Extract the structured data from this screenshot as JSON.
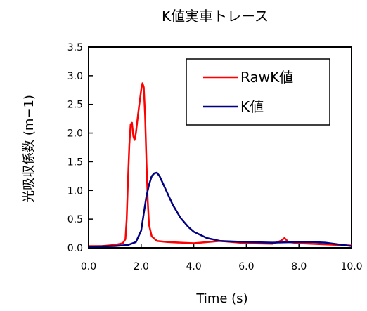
{
  "chart_data": {
    "type": "line",
    "title": "K値実車トレース",
    "xlabel": "Time (s)",
    "ylabel": "光吸収係数 (m−1)",
    "xlim": [
      0,
      10
    ],
    "ylim": [
      0,
      3.5
    ],
    "x_ticks": [
      "0.0",
      "2.0",
      "4.0",
      "6.0",
      "8.0",
      "10.0"
    ],
    "y_ticks": [
      "0.0",
      "0.5",
      "1.0",
      "1.5",
      "2.0",
      "2.5",
      "3.0",
      "3.5"
    ],
    "grid": false,
    "legend_position": "top-right",
    "series": [
      {
        "name": "RawK値",
        "color": "#ff0000",
        "points": [
          [
            0.0,
            0.03
          ],
          [
            0.5,
            0.03
          ],
          [
            1.0,
            0.05
          ],
          [
            1.3,
            0.08
          ],
          [
            1.4,
            0.15
          ],
          [
            1.45,
            0.5
          ],
          [
            1.5,
            1.2
          ],
          [
            1.55,
            1.8
          ],
          [
            1.6,
            2.15
          ],
          [
            1.65,
            2.18
          ],
          [
            1.7,
            1.95
          ],
          [
            1.75,
            1.88
          ],
          [
            1.8,
            2.0
          ],
          [
            1.9,
            2.4
          ],
          [
            2.0,
            2.75
          ],
          [
            2.05,
            2.87
          ],
          [
            2.1,
            2.8
          ],
          [
            2.15,
            2.3
          ],
          [
            2.2,
            1.5
          ],
          [
            2.25,
            0.8
          ],
          [
            2.3,
            0.4
          ],
          [
            2.4,
            0.2
          ],
          [
            2.6,
            0.12
          ],
          [
            3.0,
            0.1
          ],
          [
            4.0,
            0.08
          ],
          [
            5.0,
            0.12
          ],
          [
            6.0,
            0.08
          ],
          [
            7.0,
            0.07
          ],
          [
            7.3,
            0.12
          ],
          [
            7.45,
            0.17
          ],
          [
            7.6,
            0.1
          ],
          [
            8.0,
            0.08
          ],
          [
            9.0,
            0.06
          ],
          [
            10.0,
            0.04
          ]
        ]
      },
      {
        "name": "K値",
        "color": "#000080",
        "points": [
          [
            0.0,
            0.02
          ],
          [
            1.0,
            0.03
          ],
          [
            1.5,
            0.05
          ],
          [
            1.8,
            0.1
          ],
          [
            2.0,
            0.3
          ],
          [
            2.1,
            0.6
          ],
          [
            2.2,
            0.9
          ],
          [
            2.3,
            1.1
          ],
          [
            2.4,
            1.25
          ],
          [
            2.5,
            1.3
          ],
          [
            2.6,
            1.31
          ],
          [
            2.7,
            1.25
          ],
          [
            2.8,
            1.15
          ],
          [
            3.0,
            0.95
          ],
          [
            3.2,
            0.75
          ],
          [
            3.5,
            0.52
          ],
          [
            3.8,
            0.36
          ],
          [
            4.0,
            0.28
          ],
          [
            4.5,
            0.17
          ],
          [
            5.0,
            0.12
          ],
          [
            6.0,
            0.1
          ],
          [
            7.0,
            0.09
          ],
          [
            8.0,
            0.1
          ],
          [
            8.5,
            0.1
          ],
          [
            9.0,
            0.09
          ],
          [
            9.5,
            0.06
          ],
          [
            10.0,
            0.03
          ]
        ]
      }
    ]
  }
}
